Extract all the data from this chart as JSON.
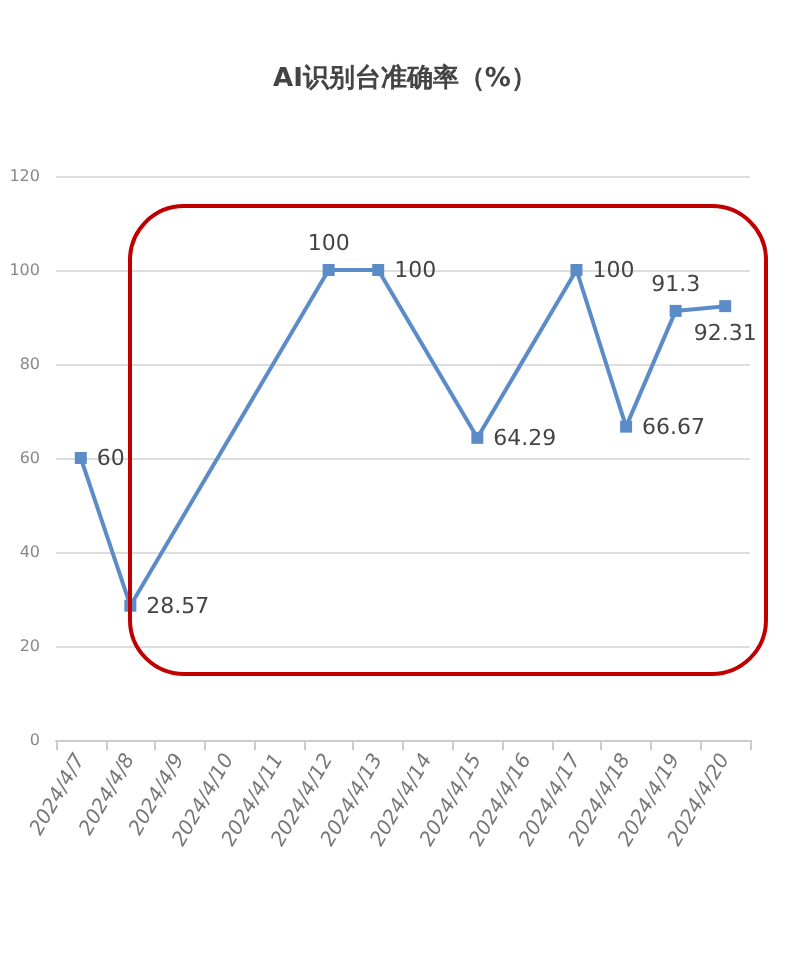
{
  "chart_data": {
    "type": "line",
    "title": "AI识别台准确率（%）",
    "categories": [
      "2024/4/7",
      "2024/4/8",
      "2024/4/9",
      "2024/4/10",
      "2024/4/11",
      "2024/4/12",
      "2024/4/13",
      "2024/4/14",
      "2024/4/15",
      "2024/4/16",
      "2024/4/17",
      "2024/4/18",
      "2024/4/19",
      "2024/4/20"
    ],
    "series": [
      {
        "color": "#5b8cc8",
        "values": [
          60,
          28.57,
          null,
          null,
          null,
          100,
          100,
          null,
          64.29,
          null,
          100,
          66.67,
          91.3,
          92.31
        ]
      }
    ],
    "ylim": [
      0,
      120
    ],
    "yticks": [
      0,
      20,
      40,
      60,
      80,
      100,
      120
    ],
    "grid": "y",
    "marker": "square",
    "line_style": "solid",
    "data_labels": true
  }
}
